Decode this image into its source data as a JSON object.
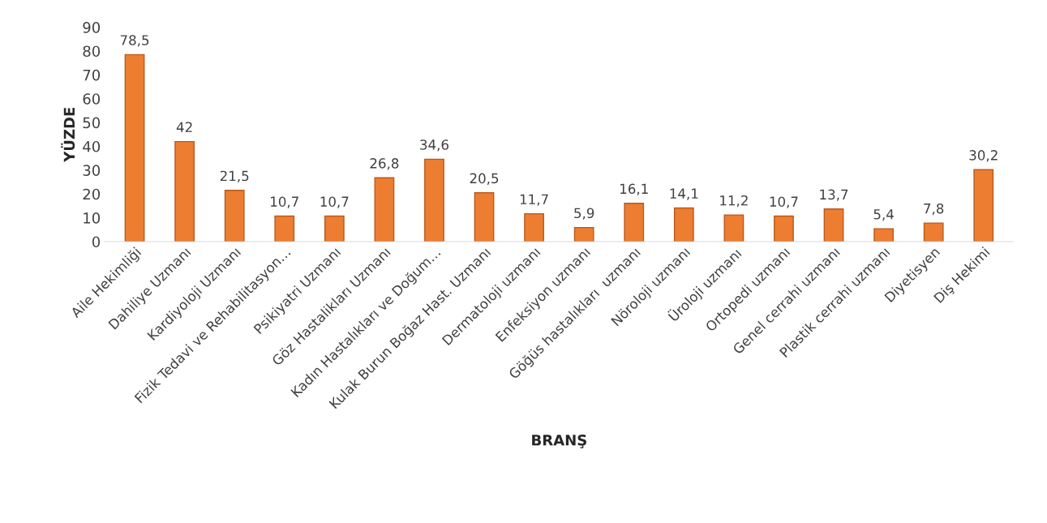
{
  "chart_data": {
    "type": "bar",
    "xlabel": "BRANŞ",
    "ylabel": "YÜZDE",
    "categories": [
      "Aile Hekimliği",
      "Dahiliye Uzmanı",
      "Kardiyoloji Uzmanı",
      "Fizik Tedavi ve Rehabilitasyon…",
      "Psikiyatri Uzmanı",
      "Göz Hastalikları Uzmanı",
      "Kadın Hastalıkları ve Doğum…",
      "Kulak Burun Boğaz Hast. Uzmanı",
      "Dermatoloji uzmanı",
      "Enfeksiyon uzmanı",
      "Göğüs hastalıkları  uzmanı",
      "Nöroloji uzmanı",
      "Üroloji uzmanı",
      "Ortopedi uzmanı",
      "Genel cerrahi uzmanı",
      "Plastik cerrahi uzmanı",
      "Diyetisyen",
      "Diş Hekimi"
    ],
    "values": [
      78.5,
      42,
      21.5,
      10.7,
      10.7,
      26.8,
      34.6,
      20.5,
      11.7,
      5.9,
      16.1,
      14.1,
      11.2,
      10.7,
      13.7,
      5.4,
      7.8,
      30.2
    ],
    "value_labels": [
      "78,5",
      "42",
      "21,5",
      "10,7",
      "10,7",
      "26,8",
      "34,6",
      "20,5",
      "11,7",
      "5,9",
      "16,1",
      "14,1",
      "11,2",
      "10,7",
      "13,7",
      "5,4",
      "7,8",
      "30,2"
    ],
    "color": "#ed7d31",
    "ylim": [
      0,
      90
    ],
    "yticks": [
      0,
      10,
      20,
      30,
      40,
      50,
      60,
      70,
      80,
      90
    ],
    "grid": false,
    "legend": false
  }
}
